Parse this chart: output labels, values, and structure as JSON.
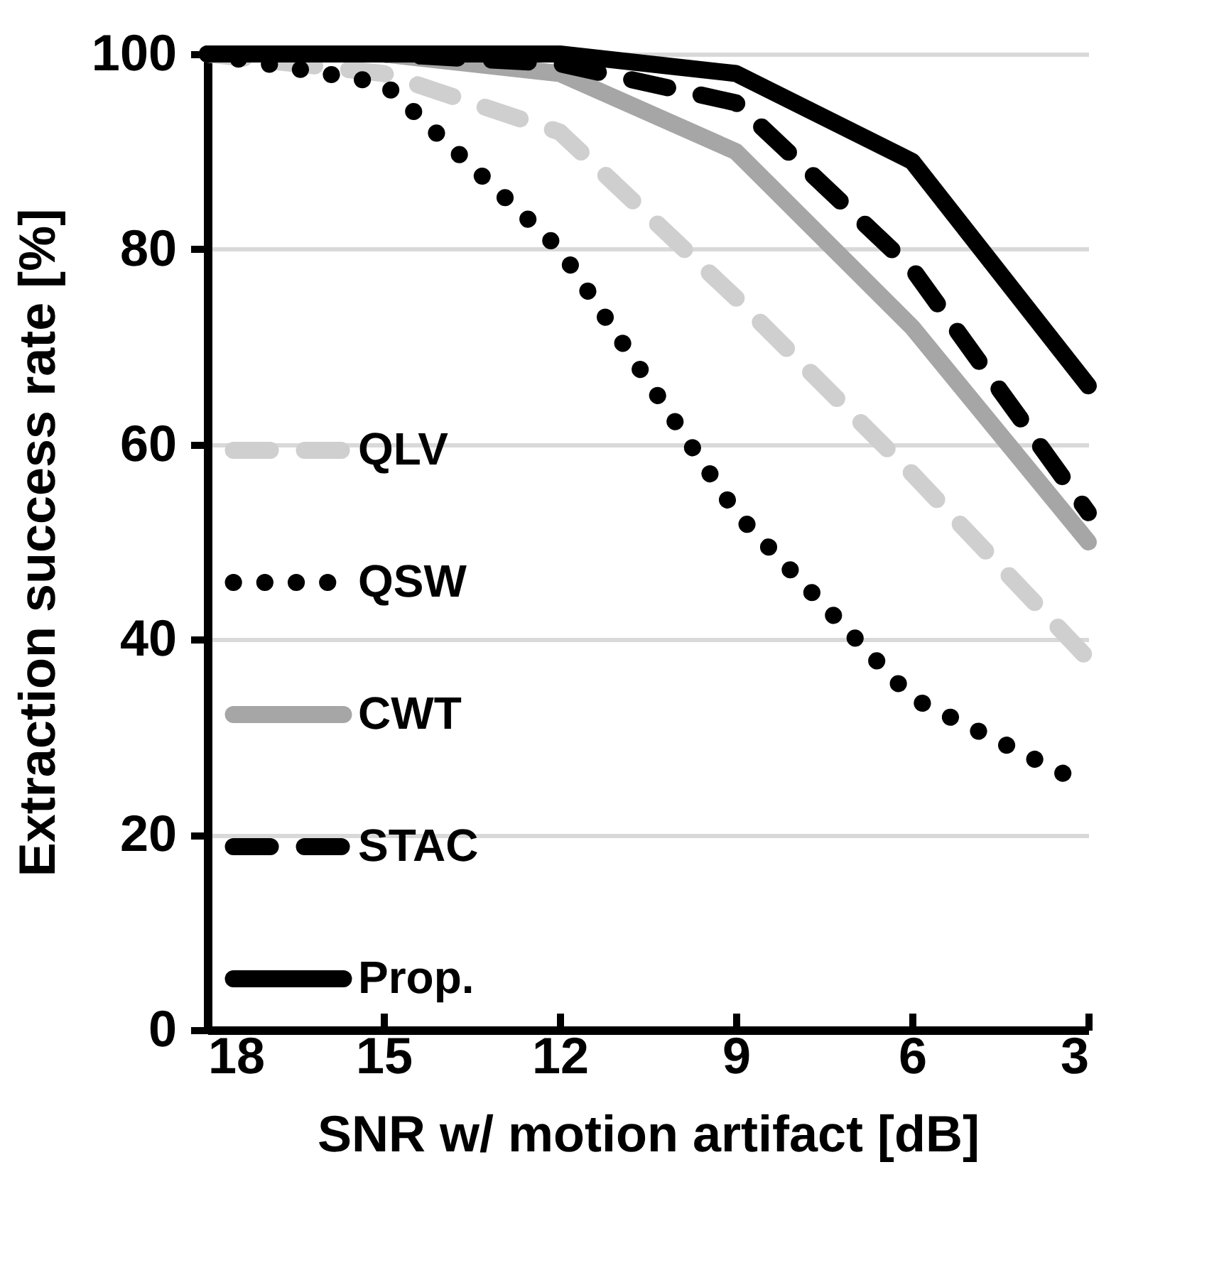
{
  "chart_data": {
    "type": "line",
    "xlabel": "SNR w/ motion artifact [dB]",
    "ylabel": "Extraction success rate [%]",
    "x": [
      18,
      15,
      12,
      9,
      6,
      3
    ],
    "xlim": [
      18,
      3
    ],
    "xticks": [
      18,
      15,
      12,
      9,
      6,
      3
    ],
    "ylim": [
      0,
      100
    ],
    "yticks": [
      0,
      20,
      40,
      60,
      80,
      100
    ],
    "grid": "y",
    "legend": "bottom left",
    "marker": "none",
    "series": [
      {
        "name": "QLV",
        "color": "#cfcfcf",
        "line_style": "dashed",
        "values": [
          100,
          98,
          92,
          75,
          57,
          38
        ]
      },
      {
        "name": "QSW",
        "color": "#000000",
        "line_style": "dotted",
        "values": [
          100,
          97,
          80,
          53,
          34,
          25
        ]
      },
      {
        "name": "CWT",
        "color": "#a6a6a6",
        "line_style": "solid",
        "values": [
          100,
          100,
          98,
          90,
          72,
          50
        ]
      },
      {
        "name": "STAC",
        "color": "#000000",
        "line_style": "dashed",
        "values": [
          100,
          100,
          99,
          95,
          78,
          53
        ]
      },
      {
        "name": "Prop.",
        "color": "#000000",
        "line_style": "solid",
        "values": [
          100,
          100,
          100,
          98,
          89,
          66
        ]
      }
    ]
  }
}
